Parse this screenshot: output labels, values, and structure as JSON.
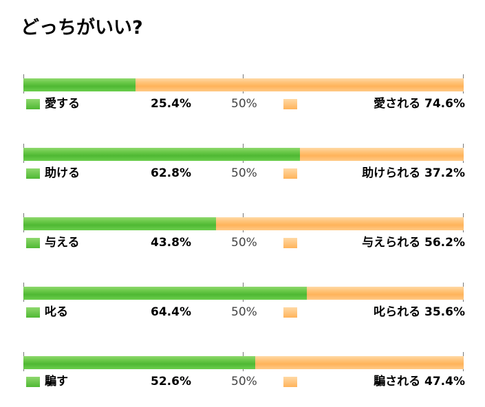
{
  "page_title": "どっちがいい?",
  "colors": {
    "series_a": "#5cbf3c",
    "series_b": "#ffbb66"
  },
  "chart_data": [
    {
      "type": "bar",
      "stacked": true,
      "label_a": "愛する",
      "value_a": 25.4,
      "text_a": "25.4%",
      "label_b": "愛される",
      "value_b": 74.6,
      "text_b": "74.6%",
      "mid_label": "50%"
    },
    {
      "type": "bar",
      "stacked": true,
      "label_a": "助ける",
      "value_a": 62.8,
      "text_a": "62.8%",
      "label_b": "助けられる",
      "value_b": 37.2,
      "text_b": "37.2%",
      "mid_label": "50%"
    },
    {
      "type": "bar",
      "stacked": true,
      "label_a": "与える",
      "value_a": 43.8,
      "text_a": "43.8%",
      "label_b": "与えられる",
      "value_b": 56.2,
      "text_b": "56.2%",
      "mid_label": "50%"
    },
    {
      "type": "bar",
      "stacked": true,
      "label_a": "叱る",
      "value_a": 64.4,
      "text_a": "64.4%",
      "label_b": "叱られる",
      "value_b": 35.6,
      "text_b": "35.6%",
      "mid_label": "50%"
    },
    {
      "type": "bar",
      "stacked": true,
      "label_a": "騙す",
      "value_a": 52.6,
      "text_a": "52.6%",
      "label_b": "騙される",
      "value_b": 47.4,
      "text_b": "47.4%",
      "mid_label": "50%"
    }
  ]
}
